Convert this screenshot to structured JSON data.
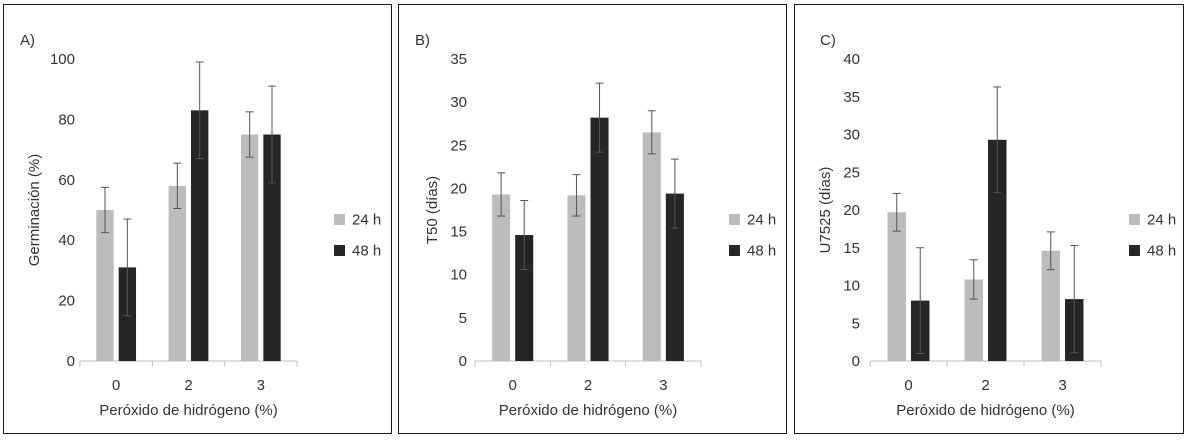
{
  "chart_data": [
    {
      "type": "bar",
      "panel_label": "A)",
      "categories": [
        "0",
        "2",
        "3"
      ],
      "xlabel": "Peróxido de hidrógeno (%)",
      "ylabel": "Germinación (%)",
      "ylim": [
        0,
        100
      ],
      "yticks": [
        "0",
        "20",
        "40",
        "60",
        "80",
        "100"
      ],
      "ytick_values": [
        0,
        20,
        40,
        60,
        80,
        100
      ],
      "grid": false,
      "legend_position": "right",
      "series": [
        {
          "name": "24 h",
          "color": "#bcbcbc",
          "values": [
            50,
            58,
            75
          ],
          "errors": [
            7.5,
            7.5,
            7.5
          ]
        },
        {
          "name": "48 h",
          "color": "#262626",
          "values": [
            31,
            83,
            75
          ],
          "errors": [
            16,
            16,
            16
          ]
        }
      ]
    },
    {
      "type": "bar",
      "panel_label": "B)",
      "categories": [
        "0",
        "2",
        "3"
      ],
      "xlabel": "Peróxido de hidrógeno (%)",
      "ylabel": "T50 (días)",
      "ylim": [
        0,
        35
      ],
      "yticks": [
        "0",
        "5",
        "10",
        "15",
        "20",
        "25",
        "30",
        "35"
      ],
      "ytick_values": [
        0,
        5,
        10,
        15,
        20,
        25,
        30,
        35
      ],
      "grid": false,
      "legend_position": "right",
      "series": [
        {
          "name": "24 h",
          "color": "#bcbcbc",
          "values": [
            19.3,
            19.2,
            26.5
          ],
          "errors": [
            2.5,
            2.4,
            2.5
          ]
        },
        {
          "name": "48 h",
          "color": "#262626",
          "values": [
            14.6,
            28.2,
            19.4
          ],
          "errors": [
            4.0,
            4.0,
            4.0
          ]
        }
      ]
    },
    {
      "type": "bar",
      "panel_label": "C)",
      "categories": [
        "0",
        "2",
        "3"
      ],
      "xlabel": "Peróxido de hidrógeno (%)",
      "ylabel": "U7525 (días)",
      "ylim": [
        0,
        40
      ],
      "yticks": [
        "0",
        "5",
        "10",
        "15",
        "20",
        "25",
        "30",
        "35",
        "40"
      ],
      "ytick_values": [
        0,
        5,
        10,
        15,
        20,
        25,
        30,
        35,
        40
      ],
      "grid": false,
      "legend_position": "right",
      "series": [
        {
          "name": "24 h",
          "color": "#bcbcbc",
          "values": [
            19.7,
            10.8,
            14.6
          ],
          "errors": [
            2.5,
            2.6,
            2.5
          ]
        },
        {
          "name": "48 h",
          "color": "#262626",
          "values": [
            8.0,
            29.3,
            8.2
          ],
          "errors": [
            7.0,
            7.0,
            7.1
          ]
        }
      ]
    }
  ]
}
